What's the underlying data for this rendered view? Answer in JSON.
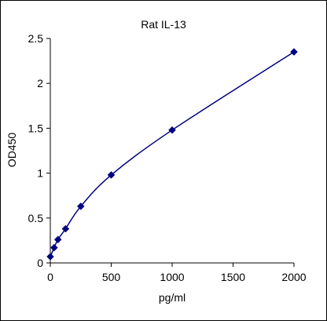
{
  "chart_data": {
    "type": "scatter",
    "title": "Rat  IL-13",
    "xlabel": "pg/ml",
    "ylabel": "OD450",
    "xlim": [
      0,
      2000
    ],
    "ylim": [
      0,
      2.5
    ],
    "x_ticks": [
      "0",
      "500",
      "1000",
      "1500",
      "2000"
    ],
    "y_ticks": [
      "0",
      "0.5",
      "1",
      "1.5",
      "2",
      "2.5"
    ],
    "grid": false,
    "legend": "none",
    "series": [
      {
        "x": [
          0,
          31.25,
          62.5,
          125,
          250,
          500,
          1000,
          2000
        ],
        "y": [
          0.07,
          0.17,
          0.26,
          0.38,
          0.63,
          0.98,
          1.48,
          2.35
        ],
        "marker": "diamond",
        "trendline": "smooth",
        "color": "#000080"
      }
    ]
  }
}
